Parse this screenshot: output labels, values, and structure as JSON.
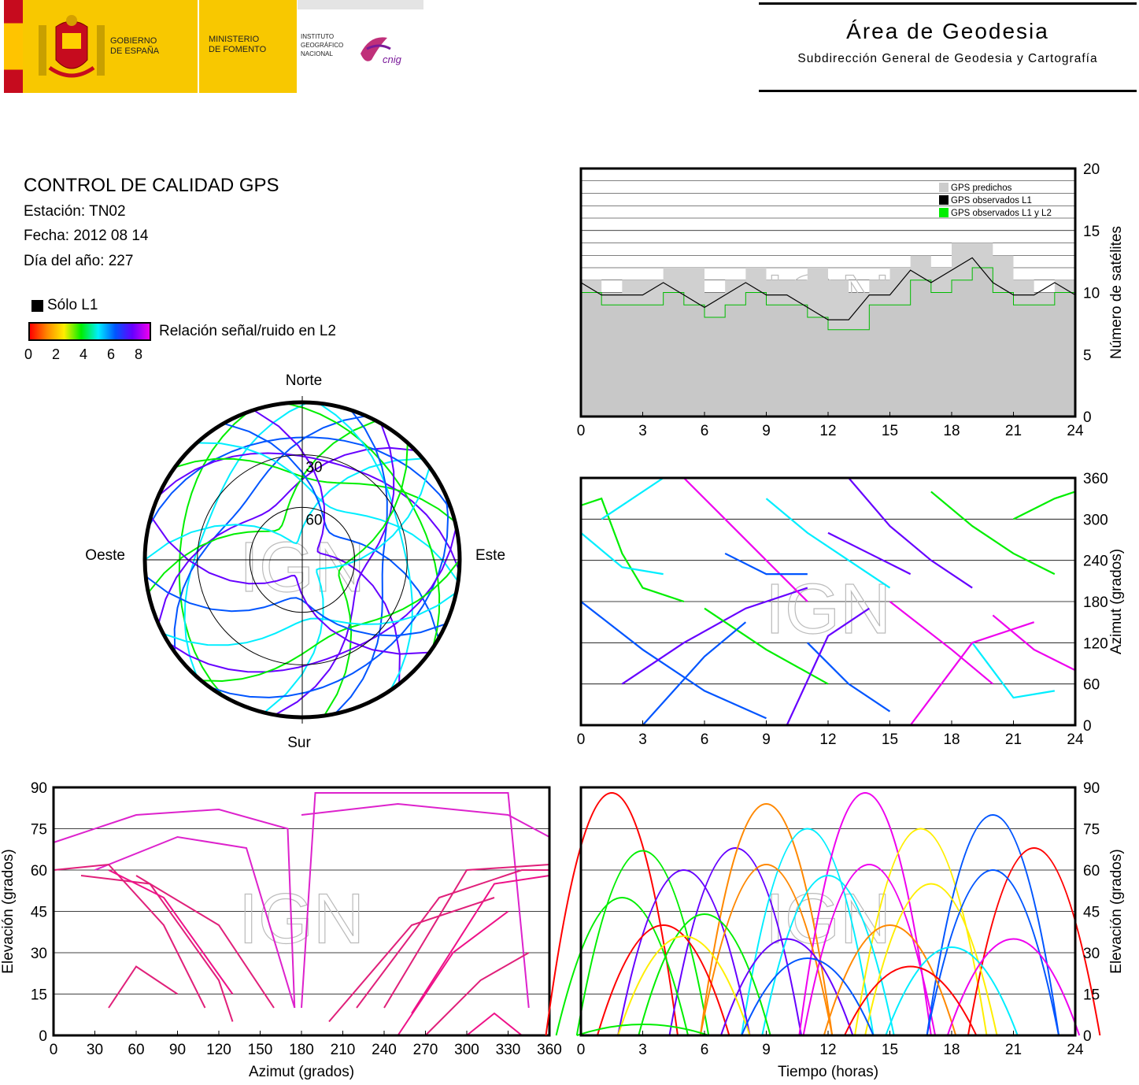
{
  "header": {
    "gov_line1": "GOBIERNO",
    "gov_line2": "DE ESPAÑA",
    "ministry_line1": "MINISTERIO",
    "ministry_line2": "DE FOMENTO",
    "ign_line1": "INSTITUTO",
    "ign_line2": "GEOGRÁFICO",
    "ign_line3": "NACIONAL",
    "cnig_logo_text": "cnig",
    "area_title": "Área de Geodesia",
    "area_subtitle": "Subdirección General de Geodesia y Cartografía",
    "flag_colors": [
      "#c60b1e",
      "#ffc400"
    ],
    "brand_yellow": "#f8c800"
  },
  "report": {
    "title": "CONTROL DE CALIDAD GPS",
    "station": "Estación: TN02",
    "date": "Fecha: 2012 08 14",
    "doy": "Día del año: 227",
    "l1_only_label": "Sólo L1",
    "snr_label": "Relación señal/ruido en L2",
    "snr_ticks": [
      "0",
      "2",
      "4",
      "6",
      "8"
    ],
    "snr_colors": [
      "#ff0000",
      "#ff8800",
      "#ffee00",
      "#00ee00",
      "#00eeff",
      "#0055ff",
      "#6600ff",
      "#ee00ee"
    ]
  },
  "watermark": "IGN",
  "chart_data": [
    {
      "type": "polar-skyplot",
      "direction_labels": {
        "north": "Norte",
        "south": "Sur",
        "east": "Este",
        "west": "Oeste"
      },
      "ring_labels": [
        "30",
        "60"
      ],
      "rings_elevation": [
        0,
        30,
        60
      ],
      "series_note_colors": "SNR in L2 coded 0–8 by colorbar"
    },
    {
      "type": "area",
      "title": "",
      "ylabel": "Número de satélites",
      "xlabel": "",
      "xlim": [
        0,
        24
      ],
      "ylim": [
        0,
        20
      ],
      "x_ticks": [
        "0",
        "3",
        "6",
        "9",
        "12",
        "15",
        "18",
        "21",
        "24"
      ],
      "y_ticks": [
        "0",
        "5",
        "10",
        "15",
        "20"
      ],
      "legend_position": "top-right",
      "legend": [
        {
          "name": "GPS predichos",
          "color": "#cccccc"
        },
        {
          "name": "GPS observados L1",
          "color": "#000000"
        },
        {
          "name": "GPS observados L1 y L2",
          "color": "#00ee00"
        }
      ],
      "x": [
        0,
        1,
        2,
        3,
        4,
        5,
        6,
        7,
        8,
        9,
        10,
        11,
        12,
        13,
        14,
        15,
        16,
        17,
        18,
        19,
        20,
        21,
        22,
        23,
        24
      ],
      "series": [
        {
          "name": "GPS predichos",
          "values": [
            11,
            10,
            11,
            11,
            12,
            12,
            10,
            11,
            12,
            11,
            11,
            12,
            11,
            10,
            11,
            12,
            13,
            12,
            14,
            14,
            13,
            11,
            10,
            11,
            11
          ]
        },
        {
          "name": "GPS observados L1 y L2",
          "values": [
            10,
            9,
            9,
            9,
            10,
            9,
            8,
            9,
            10,
            9,
            9,
            8,
            7,
            7,
            9,
            9,
            11,
            10,
            11,
            12,
            10,
            9,
            9,
            10,
            9
          ]
        }
      ]
    },
    {
      "type": "scatter",
      "title": "",
      "ylabel": "Azimut (grados)",
      "xlabel": "",
      "xlim": [
        0,
        24
      ],
      "ylim": [
        0,
        360
      ],
      "x_ticks": [
        "0",
        "3",
        "6",
        "9",
        "12",
        "15",
        "18",
        "21",
        "24"
      ],
      "y_ticks": [
        "0",
        "60",
        "120",
        "180",
        "240",
        "300",
        "360"
      ]
    },
    {
      "type": "scatter",
      "title": "",
      "ylabel": "Elevación (grados)",
      "xlabel": "Azimut (grados)",
      "xlim": [
        0,
        360
      ],
      "ylim": [
        0,
        90
      ],
      "x_ticks": [
        "0",
        "30",
        "60",
        "90",
        "120",
        "150",
        "180",
        "210",
        "240",
        "270",
        "300",
        "330",
        "360"
      ],
      "y_ticks": [
        "0",
        "15",
        "30",
        "45",
        "60",
        "75",
        "90"
      ]
    },
    {
      "type": "scatter",
      "title": "",
      "ylabel": "Elevación (grados)",
      "xlabel": "Tiempo (horas)",
      "xlim": [
        0,
        24
      ],
      "ylim": [
        0,
        90
      ],
      "x_ticks": [
        "0",
        "3",
        "6",
        "9",
        "12",
        "15",
        "18",
        "21",
        "24"
      ],
      "y_ticks": [
        "0",
        "15",
        "30",
        "45",
        "60",
        "75",
        "90"
      ]
    }
  ]
}
